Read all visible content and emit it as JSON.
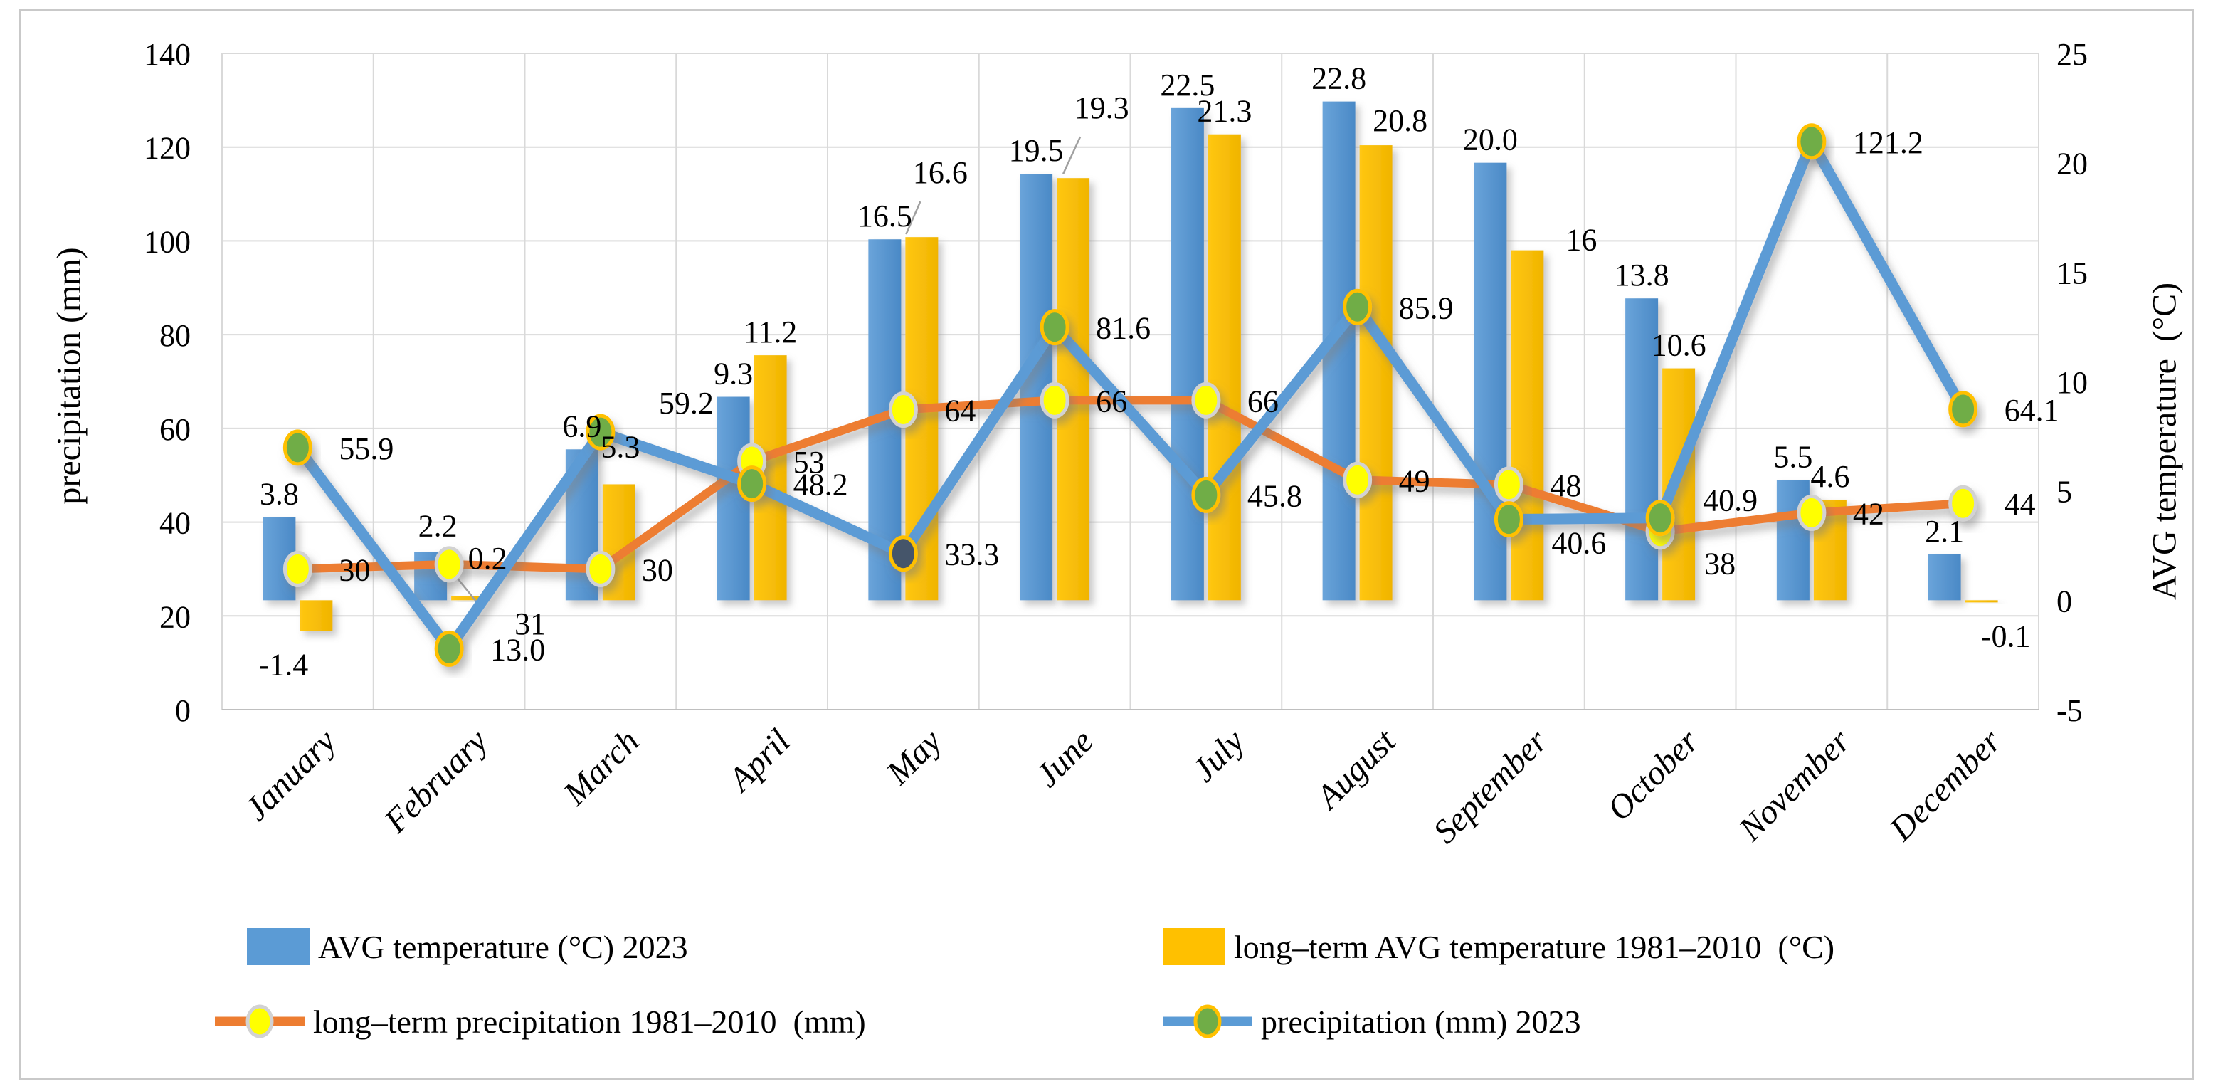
{
  "figure": {
    "background": "#ffffff",
    "border_color": "#c9c9c9"
  },
  "chart_data": {
    "type": "combo-bar-line",
    "categories": [
      "January",
      "February",
      "March",
      "April",
      "May",
      "June",
      "July",
      "August",
      "September",
      "October",
      "November",
      "December"
    ],
    "left_axis": {
      "title": "precipitation (mm)",
      "min": 0,
      "max": 140,
      "step": 20,
      "ticks": [
        "0",
        "20",
        "40",
        "60",
        "80",
        "100",
        "120",
        "140"
      ],
      "unit": "mm"
    },
    "right_axis": {
      "title": "AVG temperature  (°C)",
      "min": -5,
      "max": 25,
      "step": 5,
      "ticks": [
        "-5",
        "0",
        "5",
        "10",
        "15",
        "20",
        "25"
      ],
      "unit": "°C"
    },
    "grid": true,
    "gridline_color": "#d9d9d9",
    "axis_line_color": "#bfbfbf",
    "legend_position": "bottom",
    "series": [
      {
        "key": "avg-temp-2023",
        "name": "AVG temperature (°C) 2023",
        "type": "bar",
        "axis": "right",
        "color": "#5b9bd5",
        "color_dark": "#4a89c6",
        "values": [
          3.8,
          2.2,
          6.9,
          9.3,
          16.5,
          19.5,
          22.5,
          22.8,
          20,
          13.8,
          5.5,
          2.1
        ],
        "labels": [
          "3.8",
          "2.2",
          "6.9",
          "9.3",
          "16.5",
          "19.5",
          "22.5",
          "22.8",
          "20.0",
          "13.8",
          "5.5",
          "2.1"
        ]
      },
      {
        "key": "longterm-avg-temp",
        "name": "long–term AVG temperature 1981–2010  (°C)",
        "type": "bar",
        "axis": "right",
        "color": "#ffc000",
        "color_dark": "#f0b400",
        "values": [
          -1.4,
          0.2,
          5.3,
          11.2,
          16.6,
          19.3,
          21.3,
          20.8,
          16,
          10.6,
          4.6,
          -0.1
        ],
        "labels": [
          "-1.4",
          "0.2",
          "5.3",
          "11.2",
          "16.6",
          "19.3",
          "21.3",
          "20.8",
          "16",
          "10.6",
          "4.6",
          "-0.1"
        ]
      },
      {
        "key": "longterm-precip",
        "name": "long–term precipitation 1981–2010  (mm)",
        "type": "line",
        "axis": "left",
        "color": "#ed7d31",
        "marker_fill": "#ffff00",
        "marker_ring": "#d2d2d2",
        "values": [
          30,
          31,
          30,
          53,
          64,
          66,
          66,
          49,
          48,
          38,
          42,
          44
        ],
        "labels": [
          "30",
          "31",
          "30",
          "53",
          "64",
          "66",
          "66",
          "49",
          "48",
          "38",
          "42",
          "44"
        ]
      },
      {
        "key": "precip-2023",
        "name": "precipitation (mm) 2023",
        "type": "line",
        "axis": "left",
        "color": "#5b9bd5",
        "marker_fill": "#70ad47",
        "marker_ring": "#ffc000",
        "marker_fill_overrides": {
          "4": "#44546a"
        },
        "values": [
          55.9,
          13,
          59.2,
          48.2,
          33.3,
          81.6,
          45.8,
          85.9,
          40.6,
          40.9,
          121.2,
          64.1
        ],
        "labels": [
          "55.9",
          "13.0",
          "59.2",
          "48.2",
          "33.3",
          "81.6",
          "45.8",
          "85.9",
          "40.6",
          "40.9",
          "121.2",
          "64.1"
        ]
      }
    ]
  }
}
